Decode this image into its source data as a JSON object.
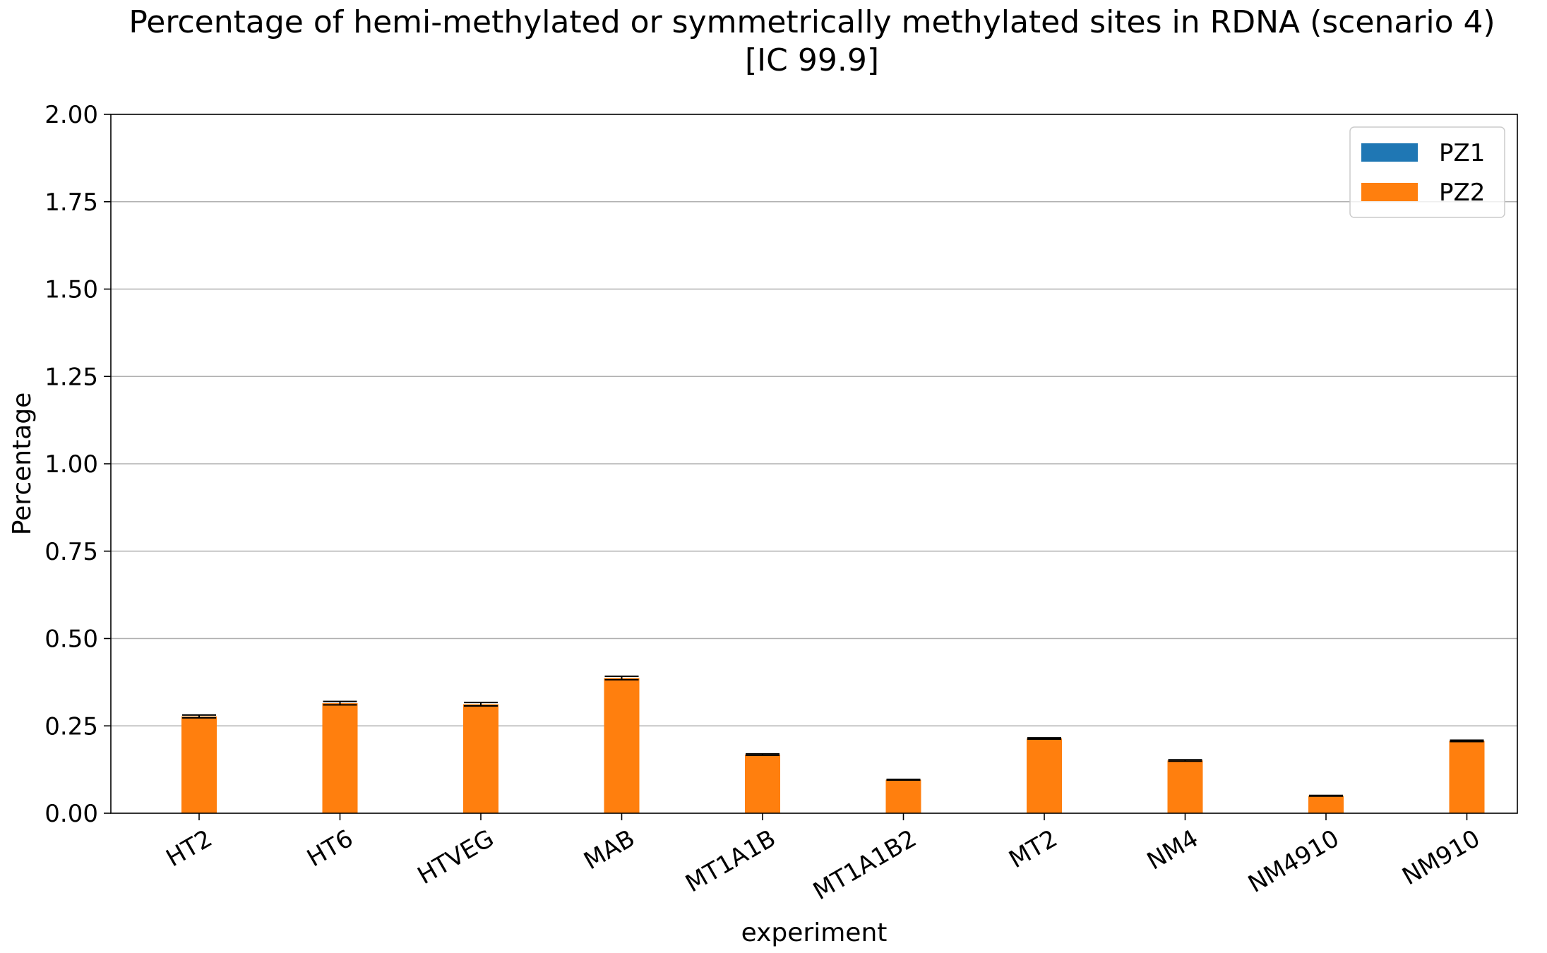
{
  "chart_data": {
    "type": "bar",
    "title": "Percentage of hemi-methylated or symmetrically methylated sites in RDNA (scenario 4)",
    "subtitle": "[IC 99.9]",
    "xlabel": "experiment",
    "ylabel": "Percentage",
    "ylim": [
      0,
      2.0
    ],
    "yticks": [
      "0.00",
      "0.25",
      "0.50",
      "0.75",
      "1.00",
      "1.25",
      "1.50",
      "1.75",
      "2.00"
    ],
    "grid": "horizontal",
    "legend_position": "top-right",
    "categories": [
      "HT2",
      "HT6",
      "HTVEG",
      "MAB",
      "MT1A1B",
      "MT1A1B2",
      "MT2",
      "NM4",
      "NM4910",
      "NM910"
    ],
    "series": [
      {
        "name": "PZ1",
        "color": "#1f77b4",
        "values": [
          0,
          0,
          0,
          0,
          0,
          0,
          0,
          0,
          0,
          0
        ],
        "errors": [
          0,
          0,
          0,
          0,
          0,
          0,
          0,
          0,
          0,
          0
        ]
      },
      {
        "name": "PZ2",
        "color": "#ff7f0e",
        "values": [
          0.277,
          0.315,
          0.312,
          0.387,
          0.168,
          0.096,
          0.214,
          0.151,
          0.05,
          0.207
        ],
        "errors": [
          0.004,
          0.005,
          0.005,
          0.005,
          0.002,
          0.001,
          0.002,
          0.002,
          0.001,
          0.002
        ]
      }
    ]
  }
}
